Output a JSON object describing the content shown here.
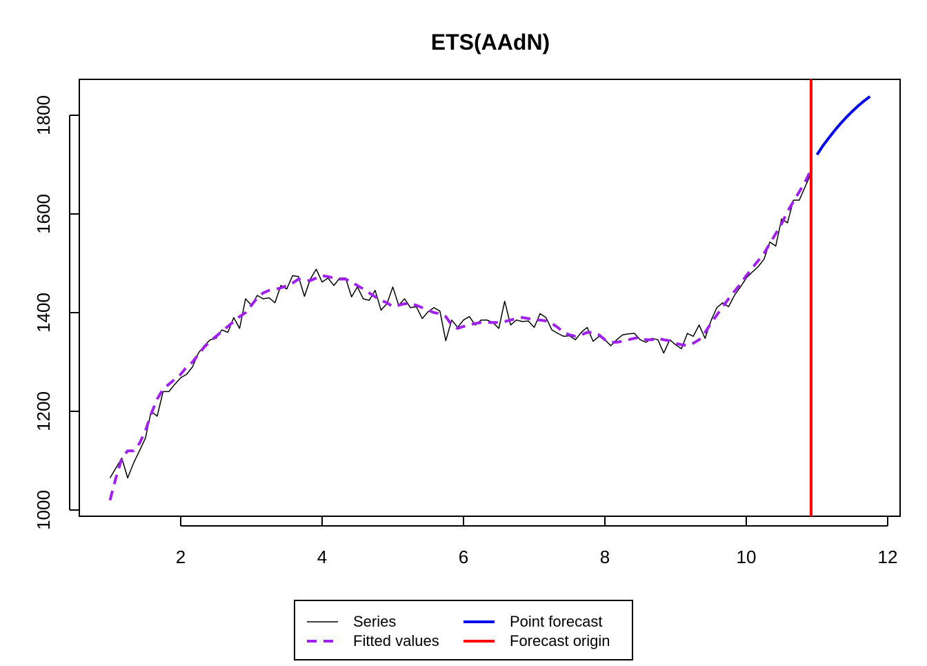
{
  "chart_data": {
    "type": "line",
    "title": "ETS(AAdN)",
    "xlim": [
      0.566,
      12.176
    ],
    "xticks": [
      2,
      4,
      6,
      8,
      10,
      12
    ],
    "ylim": [
      987.4,
      1872.7
    ],
    "yticks": [
      1000,
      1200,
      1400,
      1600,
      1800
    ],
    "grid": false,
    "legend": "bottom",
    "x": [
      1,
      1.083,
      1.167,
      1.25,
      1.333,
      1.417,
      1.5,
      1.583,
      1.667,
      1.75,
      1.833,
      1.917,
      2,
      2.083,
      2.167,
      2.25,
      2.333,
      2.417,
      2.5,
      2.583,
      2.667,
      2.75,
      2.833,
      2.917,
      3,
      3.083,
      3.167,
      3.25,
      3.333,
      3.417,
      3.5,
      3.583,
      3.667,
      3.75,
      3.833,
      3.917,
      4,
      4.083,
      4.167,
      4.25,
      4.333,
      4.417,
      4.5,
      4.583,
      4.667,
      4.75,
      4.833,
      4.917,
      5,
      5.083,
      5.167,
      5.25,
      5.333,
      5.417,
      5.5,
      5.583,
      5.667,
      5.75,
      5.833,
      5.917,
      6,
      6.083,
      6.167,
      6.25,
      6.333,
      6.417,
      6.5,
      6.583,
      6.667,
      6.75,
      6.833,
      6.917,
      7,
      7.083,
      7.167,
      7.25,
      7.333,
      7.417,
      7.5,
      7.583,
      7.667,
      7.75,
      7.833,
      7.917,
      8,
      8.083,
      8.167,
      8.25,
      8.333,
      8.417,
      8.5,
      8.583,
      8.667,
      8.75,
      8.833,
      8.917,
      9,
      9.083,
      9.167,
      9.25,
      9.333,
      9.417,
      9.5,
      9.583,
      9.667,
      9.75,
      9.833,
      9.917,
      10,
      10.083,
      10.167,
      10.25,
      10.333,
      10.417,
      10.5,
      10.583,
      10.667,
      10.75,
      10.833,
      10.917
    ],
    "series": [
      {
        "name": "Series",
        "color": "#000000",
        "style": "solid",
        "width": 1.5,
        "values": [
          1065,
          1085,
          1105,
          1065,
          1095,
          1120,
          1145,
          1200,
          1190,
          1240,
          1240,
          1255,
          1268,
          1275,
          1290,
          1318,
          1333,
          1345,
          1348,
          1365,
          1360,
          1390,
          1368,
          1428,
          1415,
          1435,
          1428,
          1430,
          1420,
          1455,
          1448,
          1475,
          1473,
          1433,
          1468,
          1488,
          1462,
          1470,
          1455,
          1470,
          1470,
          1432,
          1452,
          1428,
          1425,
          1445,
          1405,
          1418,
          1452,
          1415,
          1428,
          1410,
          1412,
          1388,
          1402,
          1410,
          1403,
          1343,
          1385,
          1370,
          1385,
          1392,
          1375,
          1385,
          1385,
          1380,
          1368,
          1423,
          1375,
          1385,
          1382,
          1383,
          1370,
          1398,
          1390,
          1365,
          1358,
          1352,
          1353,
          1345,
          1360,
          1370,
          1342,
          1352,
          1345,
          1333,
          1345,
          1355,
          1357,
          1358,
          1345,
          1340,
          1348,
          1345,
          1318,
          1345,
          1335,
          1327,
          1358,
          1352,
          1375,
          1348,
          1383,
          1410,
          1420,
          1412,
          1435,
          1452,
          1470,
          1482,
          1493,
          1508,
          1543,
          1535,
          1590,
          1582,
          1628,
          1628,
          1655,
          1683
        ]
      },
      {
        "name": "Fitted values",
        "color": "#a020f0",
        "style": "dashed",
        "width": 4,
        "values": [
          1020,
          1065,
          1105,
          1120,
          1120,
          1135,
          1160,
          1195,
          1225,
          1245,
          1255,
          1265,
          1275,
          1290,
          1300,
          1315,
          1330,
          1342,
          1352,
          1362,
          1372,
          1382,
          1392,
          1400,
          1415,
          1430,
          1440,
          1445,
          1447,
          1450,
          1455,
          1460,
          1468,
          1465,
          1465,
          1470,
          1475,
          1473,
          1470,
          1468,
          1468,
          1462,
          1455,
          1448,
          1440,
          1432,
          1425,
          1420,
          1412,
          1415,
          1418,
          1418,
          1415,
          1410,
          1405,
          1400,
          1398,
          1392,
          1375,
          1368,
          1372,
          1375,
          1378,
          1380,
          1380,
          1380,
          1380,
          1382,
          1385,
          1388,
          1390,
          1388,
          1385,
          1385,
          1383,
          1378,
          1370,
          1360,
          1355,
          1352,
          1355,
          1360,
          1360,
          1355,
          1345,
          1340,
          1340,
          1342,
          1345,
          1348,
          1350,
          1345,
          1345,
          1348,
          1345,
          1343,
          1338,
          1335,
          1333,
          1338,
          1345,
          1360,
          1378,
          1395,
          1412,
          1428,
          1443,
          1458,
          1475,
          1490,
          1505,
          1520,
          1540,
          1560,
          1580,
          1605,
          1625,
          1645,
          1665,
          1690
        ]
      },
      {
        "name": "Point forecast",
        "color": "#0000ee",
        "style": "solid",
        "width": 4,
        "x": [
          11,
          11.083,
          11.167,
          11.25,
          11.333,
          11.417,
          11.5,
          11.583,
          11.667,
          11.75
        ],
        "values": [
          1720,
          1738,
          1754,
          1769,
          1783,
          1796,
          1808,
          1819,
          1829,
          1838
        ]
      },
      {
        "name": "Forecast origin",
        "color": "#ff0000",
        "style": "vline",
        "width": 4,
        "x": 10.917
      }
    ]
  }
}
